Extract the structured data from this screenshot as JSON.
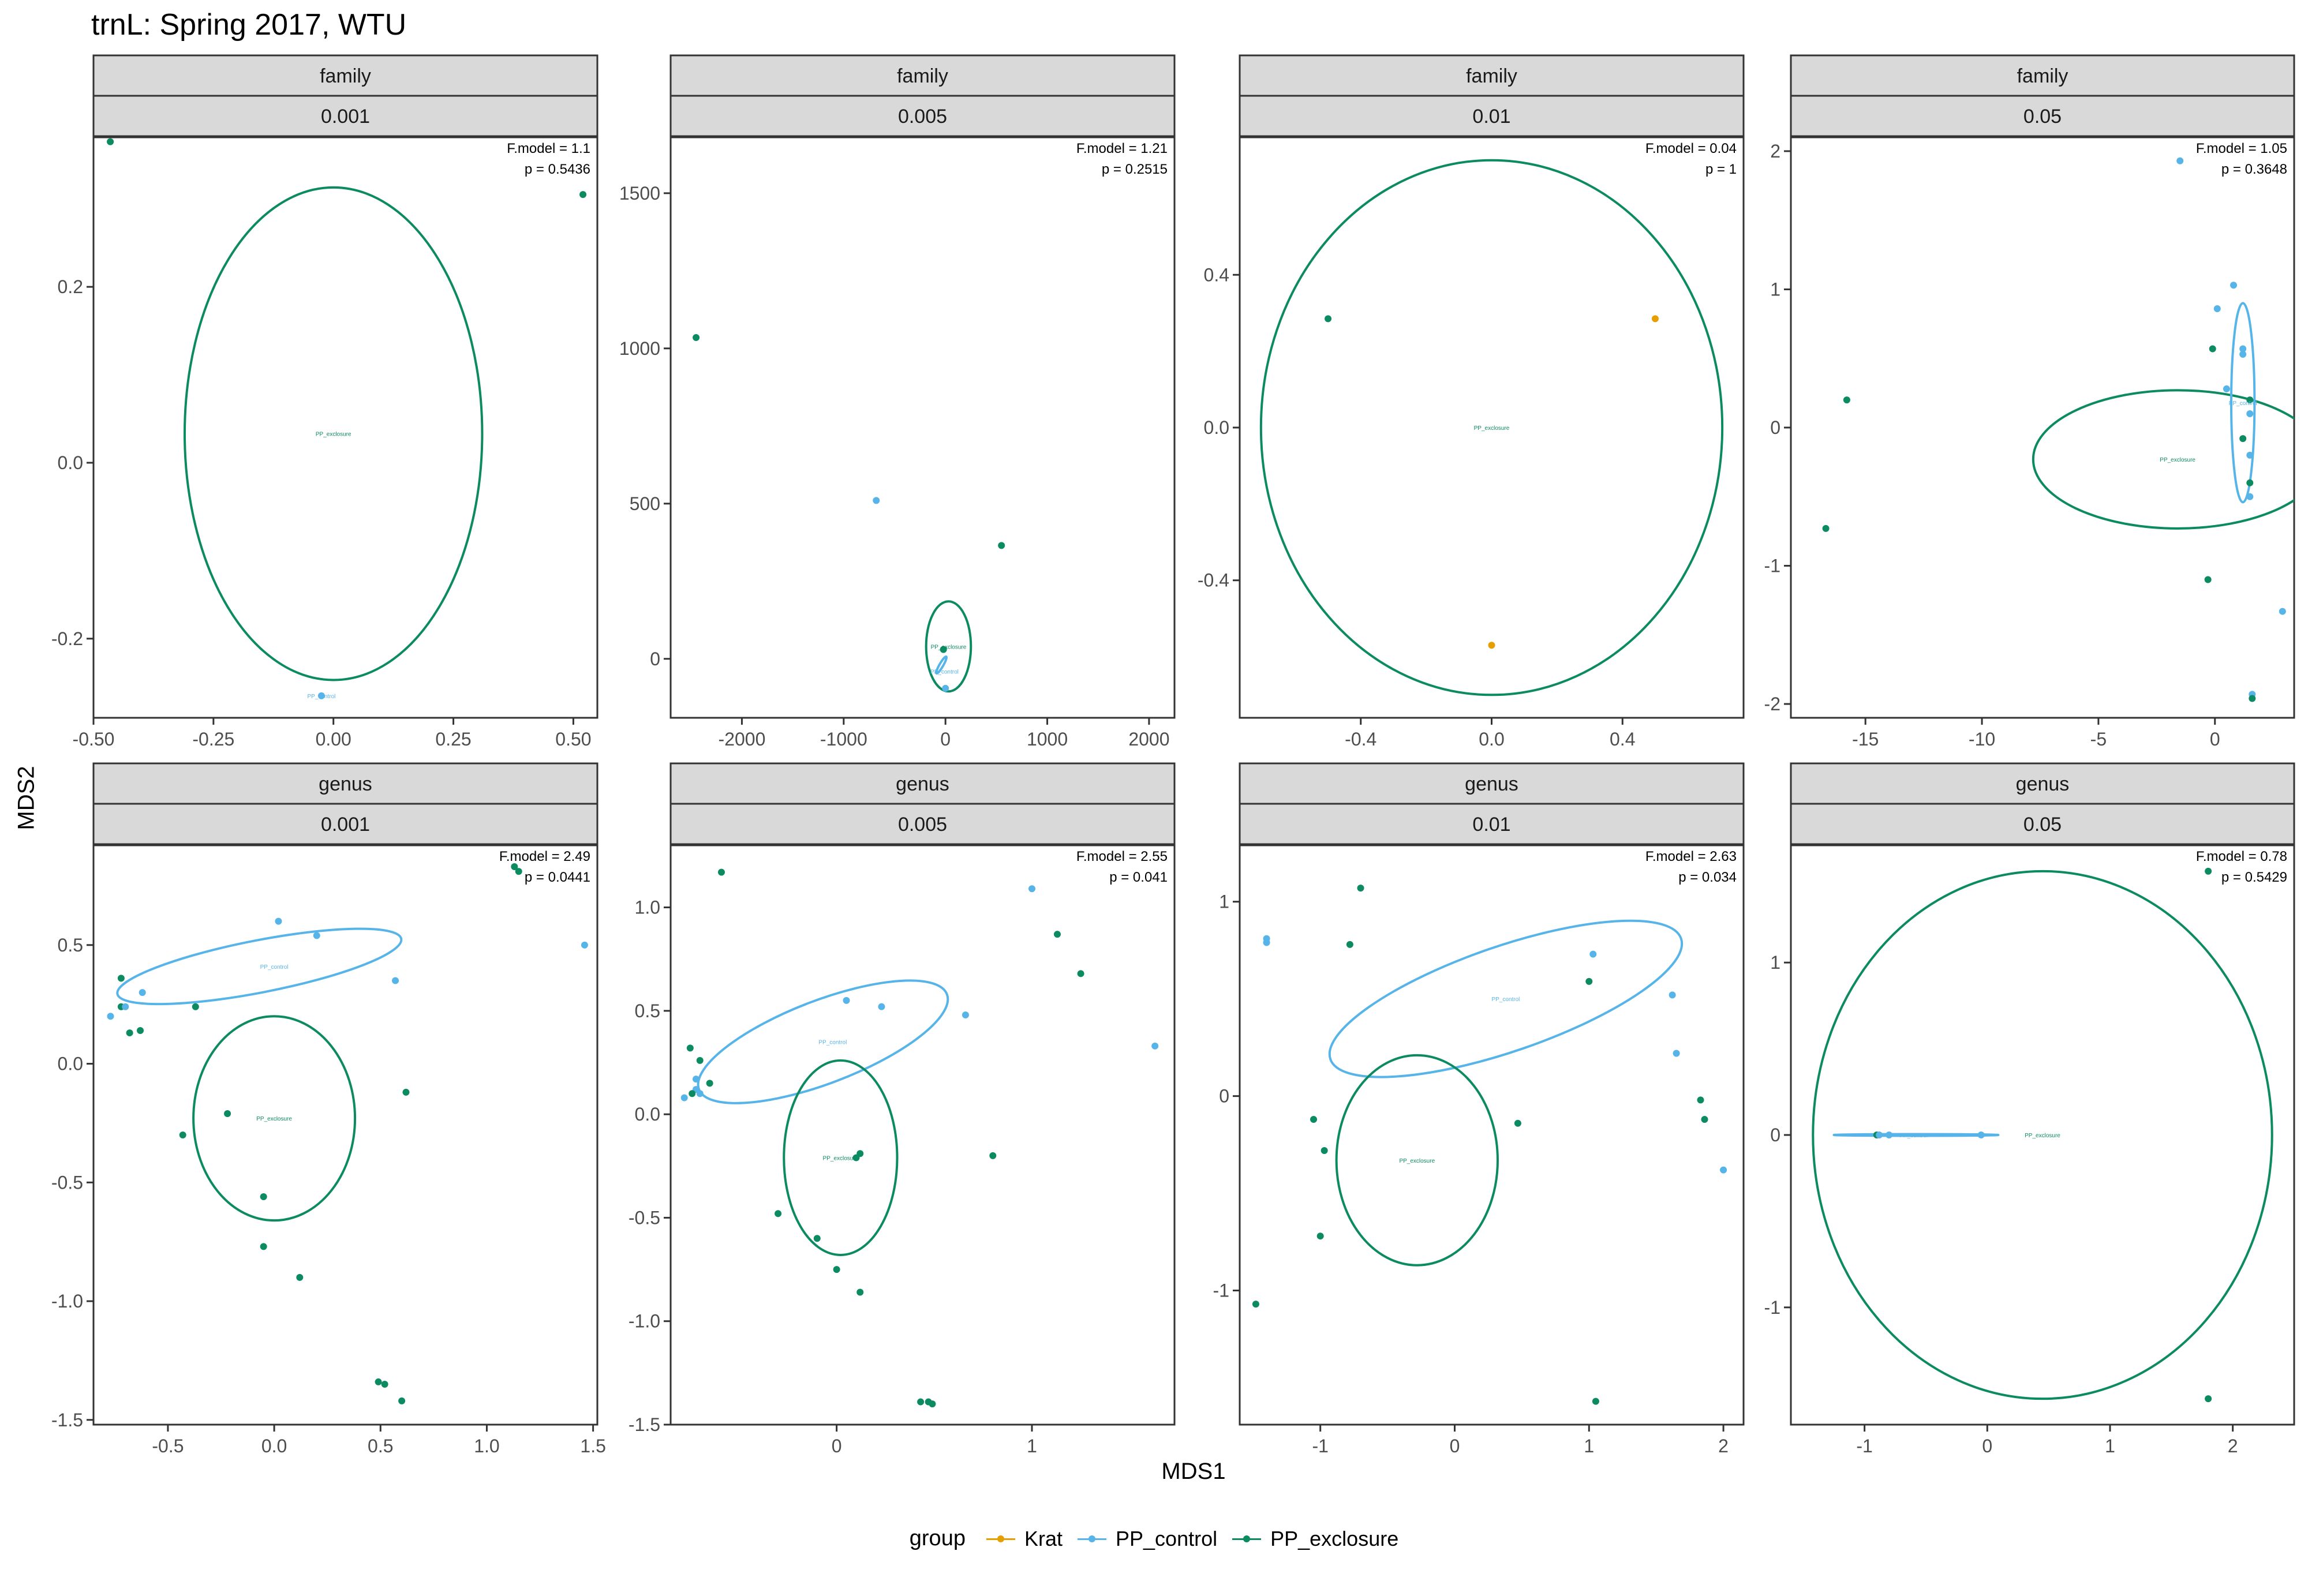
{
  "title": "trnL: Spring 2017, WTU",
  "xlabel": "MDS1",
  "ylabel": "MDS2",
  "legend": {
    "title": "group",
    "items": [
      {
        "label": "Krat",
        "color": "#E69F00"
      },
      {
        "label": "PP_control",
        "color": "#56B4E9"
      },
      {
        "label": "PP_exclosure",
        "color": "#009E73"
      }
    ]
  },
  "colors": {
    "Krat": "#E69F00",
    "PP_control": "#56B4E9",
    "PP_exclosure": "#0C8A62",
    "strip_bg": "#D9D9D9"
  },
  "chart_data": [
    {
      "type": "scatter",
      "strip_top": "family",
      "strip_bottom": "0.001",
      "stats": [
        "F.model =  1.1",
        "p =  0.5436"
      ],
      "xlim": [
        -0.5,
        0.55
      ],
      "ylim": [
        -0.29,
        0.37
      ],
      "xticks": [
        -0.5,
        -0.25,
        0.0,
        0.25,
        0.5
      ],
      "xtick_labels": [
        "-0.50",
        "-0.25",
        "0.00",
        "0.25",
        "0.50"
      ],
      "yticks": [
        -0.2,
        0.0,
        0.2
      ],
      "ytick_labels": [
        "-0.2",
        "0.0",
        "0.2"
      ],
      "points": [
        {
          "x": -0.465,
          "y": 0.365,
          "g": "PP_exclosure"
        },
        {
          "x": 0.52,
          "y": 0.305,
          "g": "PP_exclosure"
        },
        {
          "x": -0.025,
          "y": -0.265,
          "g": "PP_control"
        }
      ],
      "ellipses": [
        {
          "g": "PP_exclosure",
          "cx": 0.0,
          "cy": 0.033,
          "rx": 0.31,
          "ry": 0.28,
          "angle": 0
        }
      ],
      "labels": [
        {
          "text": "PP_exclosure",
          "x": 0.0,
          "y": 0.033,
          "g": "PP_exclosure"
        },
        {
          "text": "PP_control",
          "x": -0.025,
          "y": -0.265,
          "g": "PP_control"
        }
      ]
    },
    {
      "type": "scatter",
      "strip_top": "family",
      "strip_bottom": "0.005",
      "stats": [
        "F.model =  1.21",
        "p =  0.2515"
      ],
      "xlim": [
        -2700,
        2250
      ],
      "ylim": [
        -190,
        1680
      ],
      "xticks": [
        -2000,
        -1000,
        0,
        1000,
        2000
      ],
      "xtick_labels": [
        "-2000",
        "-1000",
        "0",
        "1000",
        "2000"
      ],
      "yticks": [
        0,
        500,
        1000,
        1500
      ],
      "ytick_labels": [
        "0",
        "500",
        "1000",
        "1500"
      ],
      "points": [
        {
          "x": -2450,
          "y": 1035,
          "g": "PP_exclosure"
        },
        {
          "x": -680,
          "y": 510,
          "g": "PP_control"
        },
        {
          "x": 550,
          "y": 365,
          "g": "PP_exclosure"
        },
        {
          "x": 0,
          "y": -95,
          "g": "PP_control"
        },
        {
          "x": -20,
          "y": 30,
          "g": "PP_exclosure"
        }
      ],
      "ellipses": [
        {
          "g": "PP_exclosure",
          "cx": 30,
          "cy": 40,
          "rx": 220,
          "ry": 145,
          "angle": 0
        },
        {
          "g": "PP_control",
          "cx": -40,
          "cy": -20,
          "rx": 95,
          "ry": 6,
          "angle": -60
        }
      ],
      "labels": [
        {
          "text": "PP_exclosure",
          "x": 30,
          "y": 40,
          "g": "PP_exclosure"
        },
        {
          "text": "PP_control",
          "x": -10,
          "y": -40,
          "g": "PP_control"
        }
      ]
    },
    {
      "type": "scatter",
      "strip_top": "family",
      "strip_bottom": "0.01",
      "stats": [
        "F.model =  0.04",
        "p =  1"
      ],
      "xlim": [
        -0.77,
        0.77
      ],
      "ylim": [
        -0.76,
        0.76
      ],
      "xticks": [
        -0.4,
        0.0,
        0.4
      ],
      "xtick_labels": [
        "-0.4",
        "0.0",
        "0.4"
      ],
      "yticks": [
        -0.4,
        0.0,
        0.4
      ],
      "ytick_labels": [
        "-0.4",
        "0.0",
        "0.4"
      ],
      "points": [
        {
          "x": -0.5,
          "y": 0.285,
          "g": "PP_exclosure"
        },
        {
          "x": 0.5,
          "y": 0.285,
          "g": "Krat"
        },
        {
          "x": 0.0,
          "y": -0.57,
          "g": "Krat"
        }
      ],
      "ellipses": [
        {
          "g": "PP_exclosure",
          "cx": 0.0,
          "cy": 0.0,
          "rx": 0.705,
          "ry": 0.7,
          "angle": 0
        }
      ],
      "labels": [
        {
          "text": "PP_exclosure",
          "x": 0.0,
          "y": 0.0,
          "g": "PP_exclosure"
        }
      ]
    },
    {
      "type": "scatter",
      "strip_top": "family",
      "strip_bottom": "0.05",
      "stats": [
        "F.model =  1.05",
        "p =  0.3648"
      ],
      "xlim": [
        -18.2,
        3.4
      ],
      "ylim": [
        -2.1,
        2.1
      ],
      "xticks": [
        -15,
        -10,
        -5,
        0
      ],
      "xtick_labels": [
        "-15",
        "-10",
        "-5",
        "0"
      ],
      "yticks": [
        -2,
        -1,
        0,
        1,
        2
      ],
      "ytick_labels": [
        "-2",
        "-1",
        "0",
        "1",
        "2"
      ],
      "points": [
        {
          "x": -1.5,
          "y": 1.93,
          "g": "PP_control"
        },
        {
          "x": 0.8,
          "y": 1.03,
          "g": "PP_control"
        },
        {
          "x": 0.1,
          "y": 0.86,
          "g": "PP_control"
        },
        {
          "x": -0.1,
          "y": 0.57,
          "g": "PP_exclosure"
        },
        {
          "x": 1.2,
          "y": 0.57,
          "g": "PP_control"
        },
        {
          "x": 1.2,
          "y": 0.53,
          "g": "PP_control"
        },
        {
          "x": -15.8,
          "y": 0.2,
          "g": "PP_exclosure"
        },
        {
          "x": 0.5,
          "y": 0.28,
          "g": "PP_control"
        },
        {
          "x": 1.5,
          "y": 0.2,
          "g": "PP_exclosure"
        },
        {
          "x": 1.5,
          "y": 0.1,
          "g": "PP_control"
        },
        {
          "x": 1.2,
          "y": -0.08,
          "g": "PP_exclosure"
        },
        {
          "x": 1.5,
          "y": -0.2,
          "g": "PP_control"
        },
        {
          "x": 1.5,
          "y": -0.4,
          "g": "PP_exclosure"
        },
        {
          "x": 1.5,
          "y": -0.5,
          "g": "PP_control"
        },
        {
          "x": -16.7,
          "y": -0.73,
          "g": "PP_exclosure"
        },
        {
          "x": -0.3,
          "y": -1.1,
          "g": "PP_exclosure"
        },
        {
          "x": 2.9,
          "y": -1.33,
          "g": "PP_control"
        },
        {
          "x": 1.6,
          "y": -1.93,
          "g": "PP_control"
        },
        {
          "x": 1.6,
          "y": -1.96,
          "g": "PP_exclosure"
        }
      ],
      "ellipses": [
        {
          "g": "PP_exclosure",
          "cx": -1.6,
          "cy": -0.23,
          "rx": 6.2,
          "ry": 0.5,
          "angle": 0
        },
        {
          "g": "PP_control",
          "cx": 1.2,
          "cy": 0.18,
          "rx": 0.5,
          "ry": 0.72,
          "angle": 0
        }
      ],
      "labels": [
        {
          "text": "PP_exclosure",
          "x": -1.6,
          "y": -0.23,
          "g": "PP_exclosure"
        },
        {
          "text": "PP_control",
          "x": 1.2,
          "y": 0.18,
          "g": "PP_control"
        }
      ]
    },
    {
      "type": "scatter",
      "strip_top": "genus",
      "strip_bottom": "0.001",
      "stats": [
        "F.model =  2.49",
        "p =  0.0441"
      ],
      "xlim": [
        -0.85,
        1.52
      ],
      "ylim": [
        -1.52,
        0.92
      ],
      "xticks": [
        -0.5,
        0.0,
        0.5,
        1.0,
        1.5
      ],
      "xtick_labels": [
        "-0.5",
        "0.0",
        "0.5",
        "1.0",
        "1.5"
      ],
      "yticks": [
        -1.5,
        -1.0,
        -0.5,
        0.0,
        0.5
      ],
      "ytick_labels": [
        "-1.5",
        "-1.0",
        "-0.5",
        "0.0",
        "0.5"
      ],
      "points": [
        {
          "x": 1.13,
          "y": 0.83,
          "g": "PP_exclosure"
        },
        {
          "x": 1.15,
          "y": 0.81,
          "g": "PP_exclosure"
        },
        {
          "x": 0.02,
          "y": 0.6,
          "g": "PP_control"
        },
        {
          "x": 0.2,
          "y": 0.54,
          "g": "PP_control"
        },
        {
          "x": 1.46,
          "y": 0.5,
          "g": "PP_control"
        },
        {
          "x": 0.57,
          "y": 0.35,
          "g": "PP_control"
        },
        {
          "x": -0.72,
          "y": 0.36,
          "g": "PP_exclosure"
        },
        {
          "x": -0.62,
          "y": 0.3,
          "g": "PP_control"
        },
        {
          "x": -0.72,
          "y": 0.24,
          "g": "PP_exclosure"
        },
        {
          "x": -0.7,
          "y": 0.24,
          "g": "PP_control"
        },
        {
          "x": -0.77,
          "y": 0.2,
          "g": "PP_control"
        },
        {
          "x": -0.37,
          "y": 0.24,
          "g": "PP_exclosure"
        },
        {
          "x": -0.68,
          "y": 0.13,
          "g": "PP_exclosure"
        },
        {
          "x": -0.63,
          "y": 0.14,
          "g": "PP_exclosure"
        },
        {
          "x": 0.62,
          "y": -0.12,
          "g": "PP_exclosure"
        },
        {
          "x": -0.22,
          "y": -0.21,
          "g": "PP_exclosure"
        },
        {
          "x": -0.43,
          "y": -0.3,
          "g": "PP_exclosure"
        },
        {
          "x": -0.05,
          "y": -0.56,
          "g": "PP_exclosure"
        },
        {
          "x": -0.05,
          "y": -0.77,
          "g": "PP_exclosure"
        },
        {
          "x": 0.12,
          "y": -0.9,
          "g": "PP_exclosure"
        },
        {
          "x": 0.49,
          "y": -1.34,
          "g": "PP_exclosure"
        },
        {
          "x": 0.52,
          "y": -1.35,
          "g": "PP_exclosure"
        },
        {
          "x": 0.6,
          "y": -1.42,
          "g": "PP_exclosure"
        }
      ],
      "ellipses": [
        {
          "g": "PP_control",
          "cx": -0.07,
          "cy": 0.41,
          "rx": 0.68,
          "ry": 0.11,
          "angle": -11
        },
        {
          "g": "PP_exclosure",
          "cx": 0.0,
          "cy": -0.23,
          "rx": 0.38,
          "ry": 0.43,
          "angle": 0
        }
      ],
      "labels": [
        {
          "text": "PP_control",
          "x": 0.0,
          "y": 0.41,
          "g": "PP_control"
        },
        {
          "text": "PP_exclosure",
          "x": 0.0,
          "y": -0.23,
          "g": "PP_exclosure"
        }
      ]
    },
    {
      "type": "scatter",
      "strip_top": "genus",
      "strip_bottom": "0.005",
      "stats": [
        "F.model =  2.55",
        "p =  0.041"
      ],
      "xlim": [
        -0.85,
        1.73
      ],
      "ylim": [
        -1.5,
        1.3
      ],
      "xticks": [
        0,
        1
      ],
      "xtick_labels": [
        "0",
        "1"
      ],
      "yticks": [
        -1.5,
        -1.0,
        -0.5,
        0.0,
        0.5,
        1.0
      ],
      "ytick_labels": [
        "-1.5",
        "-1.0",
        "-0.5",
        "0.0",
        "0.5",
        "1.0"
      ],
      "points": [
        {
          "x": -0.59,
          "y": 1.17,
          "g": "PP_exclosure"
        },
        {
          "x": 1.0,
          "y": 1.09,
          "g": "PP_control"
        },
        {
          "x": 1.13,
          "y": 0.87,
          "g": "PP_exclosure"
        },
        {
          "x": 1.25,
          "y": 0.68,
          "g": "PP_exclosure"
        },
        {
          "x": 0.05,
          "y": 0.55,
          "g": "PP_control"
        },
        {
          "x": 0.23,
          "y": 0.52,
          "g": "PP_control"
        },
        {
          "x": 0.66,
          "y": 0.48,
          "g": "PP_control"
        },
        {
          "x": 1.63,
          "y": 0.33,
          "g": "PP_control"
        },
        {
          "x": -0.75,
          "y": 0.32,
          "g": "PP_exclosure"
        },
        {
          "x": -0.7,
          "y": 0.26,
          "g": "PP_exclosure"
        },
        {
          "x": -0.72,
          "y": 0.17,
          "g": "PP_control"
        },
        {
          "x": -0.65,
          "y": 0.15,
          "g": "PP_exclosure"
        },
        {
          "x": -0.72,
          "y": 0.12,
          "g": "PP_control"
        },
        {
          "x": -0.74,
          "y": 0.1,
          "g": "PP_exclosure"
        },
        {
          "x": -0.7,
          "y": 0.1,
          "g": "PP_control"
        },
        {
          "x": -0.78,
          "y": 0.08,
          "g": "PP_control"
        },
        {
          "x": 0.12,
          "y": -0.19,
          "g": "PP_exclosure"
        },
        {
          "x": 0.8,
          "y": -0.2,
          "g": "PP_exclosure"
        },
        {
          "x": 0.1,
          "y": -0.21,
          "g": "PP_exclosure"
        },
        {
          "x": -0.3,
          "y": -0.48,
          "g": "PP_exclosure"
        },
        {
          "x": -0.1,
          "y": -0.6,
          "g": "PP_exclosure"
        },
        {
          "x": 0.0,
          "y": -0.75,
          "g": "PP_exclosure"
        },
        {
          "x": 0.12,
          "y": -0.86,
          "g": "PP_exclosure"
        },
        {
          "x": 0.43,
          "y": -1.39,
          "g": "PP_exclosure"
        },
        {
          "x": 0.47,
          "y": -1.39,
          "g": "PP_exclosure"
        },
        {
          "x": 0.49,
          "y": -1.4,
          "g": "PP_exclosure"
        }
      ],
      "ellipses": [
        {
          "g": "PP_control",
          "cx": -0.07,
          "cy": 0.35,
          "rx": 0.68,
          "ry": 0.2,
          "angle": -21
        },
        {
          "g": "PP_exclosure",
          "cx": 0.02,
          "cy": -0.21,
          "rx": 0.29,
          "ry": 0.47,
          "angle": 0
        }
      ],
      "labels": [
        {
          "text": "PP_control",
          "x": -0.02,
          "y": 0.35,
          "g": "PP_control"
        },
        {
          "text": "PP_exclosure",
          "x": 0.02,
          "y": -0.21,
          "g": "PP_exclosure"
        }
      ]
    },
    {
      "type": "scatter",
      "strip_top": "genus",
      "strip_bottom": "0.01",
      "stats": [
        "F.model =  2.63",
        "p =  0.034"
      ],
      "xlim": [
        -1.6,
        2.15
      ],
      "ylim": [
        -1.69,
        1.29
      ],
      "xticks": [
        -1,
        0,
        1,
        2
      ],
      "xtick_labels": [
        "-1",
        "0",
        "1",
        "2"
      ],
      "yticks": [
        -1,
        0,
        1
      ],
      "ytick_labels": [
        "-1",
        "0",
        "1"
      ],
      "points": [
        {
          "x": -0.7,
          "y": 1.07,
          "g": "PP_exclosure"
        },
        {
          "x": -1.4,
          "y": 0.81,
          "g": "PP_control"
        },
        {
          "x": -1.4,
          "y": 0.79,
          "g": "PP_control"
        },
        {
          "x": -0.78,
          "y": 0.78,
          "g": "PP_exclosure"
        },
        {
          "x": 1.03,
          "y": 0.73,
          "g": "PP_control"
        },
        {
          "x": 1.62,
          "y": 0.52,
          "g": "PP_control"
        },
        {
          "x": 1.0,
          "y": 0.59,
          "g": "PP_exclosure"
        },
        {
          "x": 1.65,
          "y": 0.22,
          "g": "PP_control"
        },
        {
          "x": 1.83,
          "y": -0.02,
          "g": "PP_exclosure"
        },
        {
          "x": -1.05,
          "y": -0.12,
          "g": "PP_exclosure"
        },
        {
          "x": 0.47,
          "y": -0.14,
          "g": "PP_exclosure"
        },
        {
          "x": 1.86,
          "y": -0.12,
          "g": "PP_exclosure"
        },
        {
          "x": -0.97,
          "y": -0.28,
          "g": "PP_exclosure"
        },
        {
          "x": 2.0,
          "y": -0.38,
          "g": "PP_control"
        },
        {
          "x": -1.0,
          "y": -0.72,
          "g": "PP_exclosure"
        },
        {
          "x": -1.48,
          "y": -1.07,
          "g": "PP_exclosure"
        },
        {
          "x": 1.05,
          "y": -1.57,
          "g": "PP_exclosure"
        }
      ],
      "ellipses": [
        {
          "g": "PP_control",
          "cx": 0.38,
          "cy": 0.5,
          "rx": 1.38,
          "ry": 0.27,
          "angle": -19
        },
        {
          "g": "PP_exclosure",
          "cx": -0.28,
          "cy": -0.33,
          "rx": 0.6,
          "ry": 0.54,
          "angle": 0
        }
      ],
      "labels": [
        {
          "text": "PP_control",
          "x": 0.38,
          "y": 0.5,
          "g": "PP_control"
        },
        {
          "text": "PP_exclosure",
          "x": -0.28,
          "y": -0.33,
          "g": "PP_exclosure"
        }
      ]
    },
    {
      "type": "scatter",
      "strip_top": "genus",
      "strip_bottom": "0.05",
      "stats": [
        "F.model =  0.78",
        "p =  0.5429"
      ],
      "xlim": [
        -1.6,
        2.5
      ],
      "ylim": [
        -1.68,
        1.68
      ],
      "xticks": [
        -1,
        0,
        1,
        2
      ],
      "xtick_labels": [
        "-1",
        "0",
        "1",
        "2"
      ],
      "yticks": [
        -1,
        0,
        1
      ],
      "ytick_labels": [
        "-1",
        "0",
        "1"
      ],
      "points": [
        {
          "x": 1.8,
          "y": 1.53,
          "g": "PP_exclosure"
        },
        {
          "x": -0.9,
          "y": 0.0,
          "g": "PP_exclosure"
        },
        {
          "x": -0.88,
          "y": 0.0,
          "g": "PP_control"
        },
        {
          "x": -0.8,
          "y": 0.0,
          "g": "PP_control"
        },
        {
          "x": -0.05,
          "y": 0.0,
          "g": "PP_control"
        },
        {
          "x": 1.8,
          "y": -1.53,
          "g": "PP_exclosure"
        }
      ],
      "ellipses": [
        {
          "g": "PP_exclosure",
          "cx": 0.45,
          "cy": 0.0,
          "rx": 1.87,
          "ry": 1.53,
          "angle": 0
        },
        {
          "g": "PP_control",
          "cx": -0.58,
          "cy": 0.0,
          "rx": 0.67,
          "ry": 0.004,
          "angle": 0
        }
      ],
      "labels": [
        {
          "text": "PP_control",
          "x": -0.6,
          "y": 0.0,
          "g": "PP_control"
        },
        {
          "text": "PP_exclosure",
          "x": 0.45,
          "y": 0.0,
          "g": "PP_exclosure"
        }
      ]
    }
  ]
}
